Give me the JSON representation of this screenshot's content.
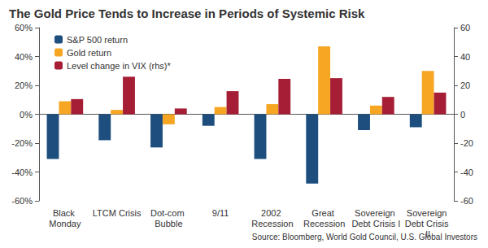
{
  "chart_data": {
    "type": "bar",
    "title": "The Gold Price Tends to Increase in Periods of Systemic Risk",
    "source": "Source: Bloomberg, World Gold Council, U.S. Global Investors",
    "categories": [
      "Black Monday",
      "LTCM Crisis",
      "Dot-com Bubble",
      "9/11",
      "2002 Recession",
      "Great Recession",
      "Sovereign Debt Crisis I",
      "Sovereign Debt Crisis II"
    ],
    "series": [
      {
        "name": "S&P 500 return",
        "color": "#1d4e7e",
        "values": [
          -31,
          -18,
          -23,
          -8,
          -31,
          -48,
          -11,
          -9
        ]
      },
      {
        "name": "Gold return",
        "color": "#f6a623",
        "values": [
          9,
          3,
          -7,
          5,
          7,
          47,
          6,
          30
        ]
      },
      {
        "name": "Level change in VIX (rhs)*",
        "color": "#a61e36",
        "axis": "y2",
        "values": [
          10.5,
          26,
          4,
          16,
          24.5,
          25,
          12,
          15
        ]
      }
    ],
    "ylim": [
      -60,
      60
    ],
    "yticks": [
      {
        "value": -60,
        "label": "-60%"
      },
      {
        "value": -40,
        "label": "-40%"
      },
      {
        "value": -20,
        "label": "-20%"
      },
      {
        "value": 0,
        "label": "0%"
      },
      {
        "value": 20,
        "label": "20%"
      },
      {
        "value": 40,
        "label": "40%"
      },
      {
        "value": 60,
        "label": "60%"
      }
    ],
    "y2lim": [
      -60,
      60
    ],
    "y2ticks": [
      -60,
      -40,
      -20,
      0,
      20,
      40,
      60
    ],
    "grid": false,
    "legend": "upper left"
  }
}
